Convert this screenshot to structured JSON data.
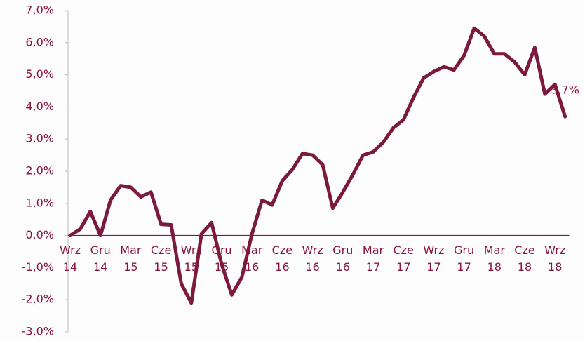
{
  "chart_data": {
    "type": "line",
    "categories": [
      "Wrz 14",
      null,
      null,
      "Gru 14",
      null,
      null,
      "Mar 15",
      null,
      null,
      "Cze 15",
      null,
      null,
      "Wrz 15",
      null,
      null,
      "Gru 15",
      null,
      null,
      "Mar 16",
      null,
      null,
      "Cze 16",
      null,
      null,
      "Wrz 16",
      null,
      null,
      "Gru 16",
      null,
      null,
      "Mar 17",
      null,
      null,
      "Cze 17",
      null,
      null,
      "Wrz 17",
      null,
      null,
      "Gru 17",
      null,
      null,
      "Mar 18",
      null,
      null,
      "Cze 18",
      null,
      null,
      "Wrz 18",
      null
    ],
    "series": [
      {
        "color": "#7b1a3e",
        "values": [
          0.0,
          0.2,
          0.75,
          0.0,
          1.1,
          1.55,
          1.5,
          1.2,
          1.35,
          0.35,
          0.33,
          -1.5,
          -2.1,
          0.05,
          0.4,
          -0.9,
          -1.85,
          -1.3,
          0.05,
          1.1,
          0.95,
          1.7,
          2.05,
          2.55,
          2.5,
          2.2,
          0.85,
          1.35,
          1.9,
          2.5,
          2.6,
          2.9,
          3.35,
          3.6,
          4.3,
          4.9,
          5.1,
          5.25,
          5.15,
          5.6,
          6.45,
          6.2,
          5.65,
          5.65,
          5.4,
          5.0,
          5.85,
          4.4,
          4.7,
          3.7
        ],
        "value_labels": [
          null,
          null,
          null,
          null,
          null,
          null,
          null,
          null,
          null,
          null,
          null,
          null,
          null,
          null,
          null,
          null,
          null,
          null,
          null,
          null,
          null,
          null,
          null,
          null,
          null,
          null,
          null,
          null,
          null,
          null,
          null,
          null,
          null,
          null,
          null,
          null,
          null,
          null,
          null,
          null,
          null,
          null,
          null,
          null,
          null,
          null,
          null,
          null,
          null,
          "3,7%"
        ]
      }
    ],
    "ylim": [
      -3,
      7
    ],
    "yticks": [
      {
        "value": -3,
        "label": "-3,0%"
      },
      {
        "value": -2,
        "label": "-2,0%"
      },
      {
        "value": -1,
        "label": "-1,0%"
      },
      {
        "value": 0,
        "label": "0,0%"
      },
      {
        "value": 1,
        "label": "1,0%"
      },
      {
        "value": 2,
        "label": "2,0%"
      },
      {
        "value": 3,
        "label": "3,0%"
      },
      {
        "value": 4,
        "label": "4,0%"
      },
      {
        "value": 5,
        "label": "5,0%"
      },
      {
        "value": 6,
        "label": "6,0%"
      },
      {
        "value": 7,
        "label": "7,0%"
      }
    ]
  }
}
